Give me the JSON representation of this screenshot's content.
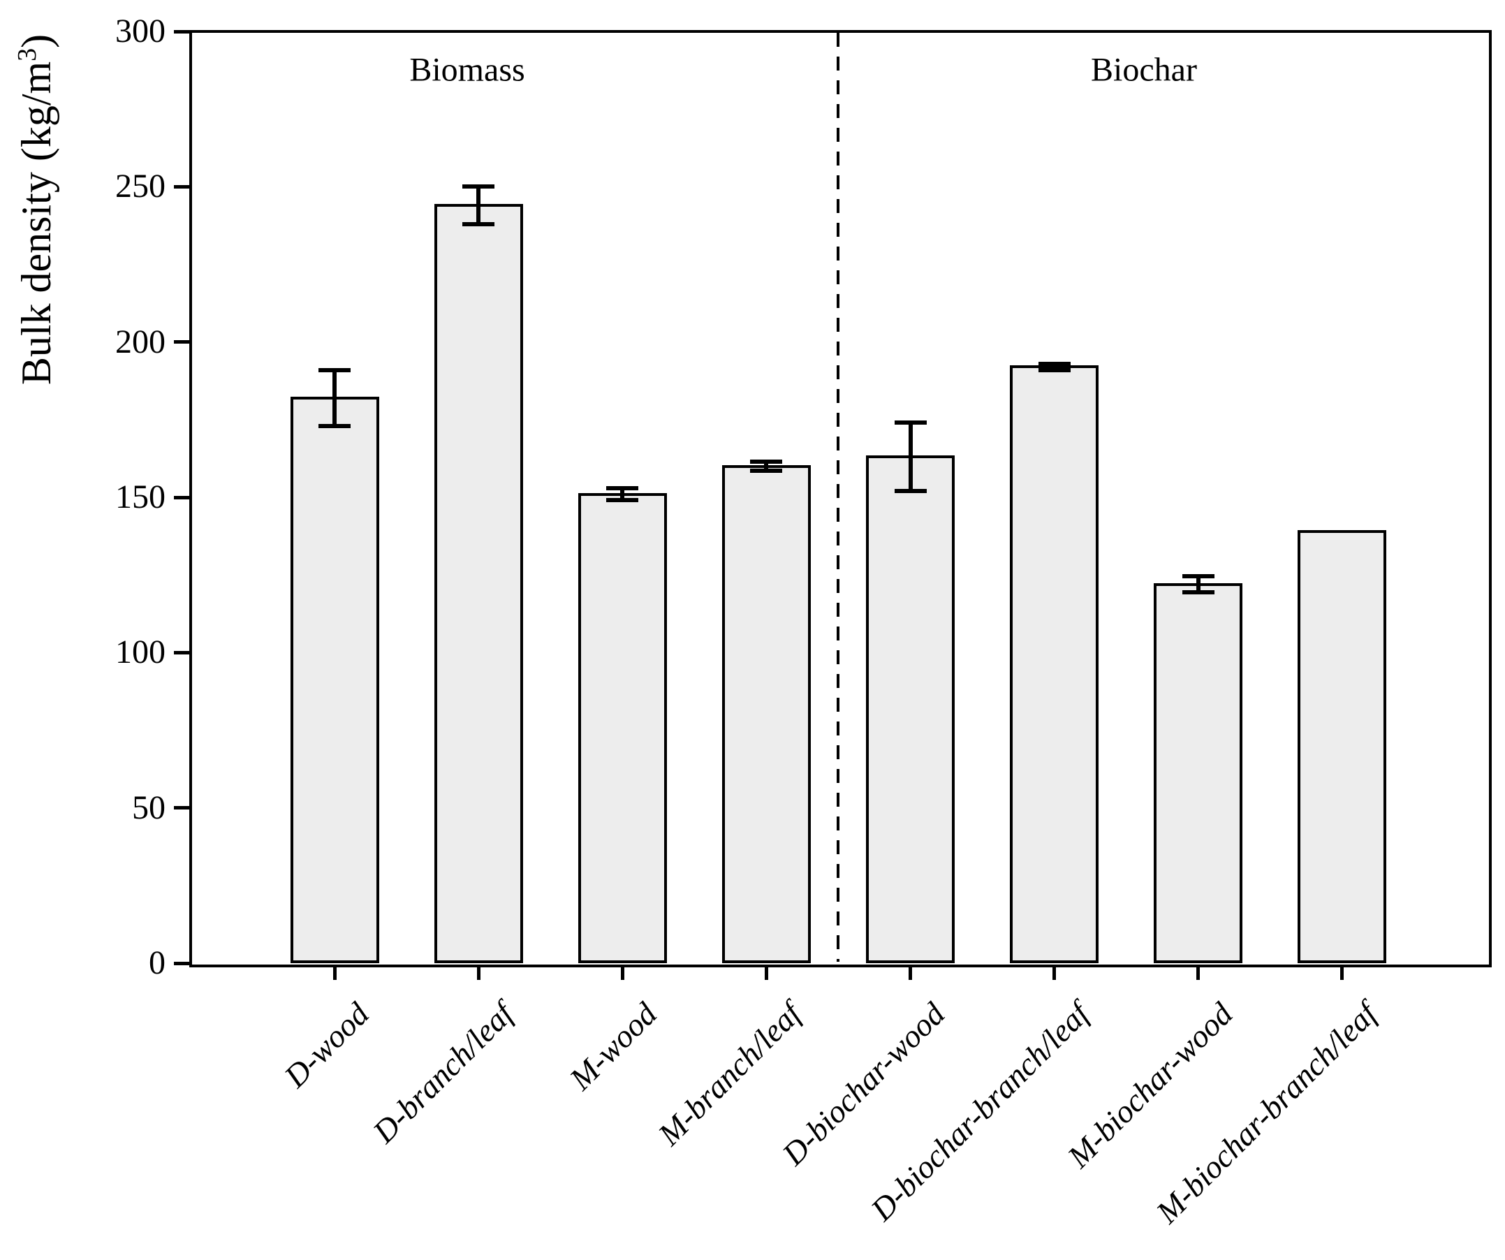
{
  "figure": {
    "ylabel_main": "Bulk density (kg/m",
    "ylabel_sup": "3",
    "ylabel_close": ")"
  },
  "chart_data": {
    "type": "bar",
    "title": "",
    "xlabel": "",
    "ylabel": "Bulk density (kg/m³)",
    "categories": [
      "D-wood",
      "D-branch/leaf",
      "M-wood",
      "M-branch/leaf",
      "D-biochar-wood",
      "D-biochar-branch/leaf",
      "M-biochar-wood",
      "M-biochar-branch/leaf"
    ],
    "values": [
      182,
      244,
      151,
      160,
      163,
      192,
      122,
      139
    ],
    "errors": [
      9,
      6,
      2,
      1.5,
      11,
      1,
      2.5,
      0
    ],
    "ylim": [
      0,
      300
    ],
    "yticks": [
      "0",
      "50",
      "100",
      "150",
      "200",
      "250",
      "300"
    ],
    "grid": false,
    "legend": "none",
    "group_labels": [
      "Biomass",
      "Biochar"
    ],
    "group_split_after_category_index": 3,
    "group_divider_style": "dashed",
    "bar_fill_color": "#ededed",
    "bar_edge_color": "#000000",
    "error_bar_color": "#000000",
    "background_color": "#ffffff"
  }
}
